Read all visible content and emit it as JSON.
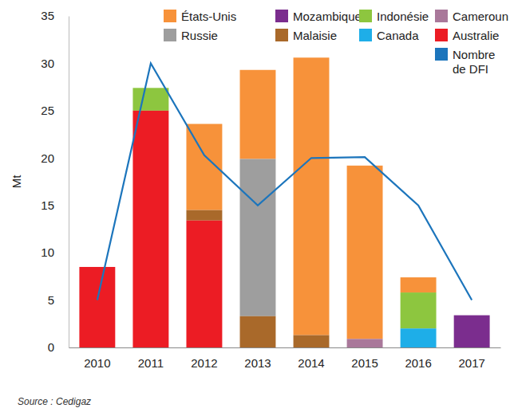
{
  "chart_data": {
    "type": "bar",
    "stacked": true,
    "y_label": "Mt",
    "annotations": [
      "Source : Cedigaz"
    ],
    "categories": [
      "2010",
      "2011",
      "2012",
      "2013",
      "2014",
      "2015",
      "2016",
      "2017"
    ],
    "ylim": [
      0,
      35
    ],
    "yticks": [
      0,
      5,
      10,
      15,
      20,
      25,
      30,
      35
    ],
    "grid": false,
    "legend": "top-right",
    "series": [
      {
        "name": "États-Unis",
        "color": "#f7923a",
        "values": [
          0,
          0,
          9.1,
          9.4,
          29.3,
          18.3,
          1.6,
          0
        ]
      },
      {
        "name": "Mozambique",
        "color": "#7b2d8e",
        "values": [
          0,
          0,
          0,
          0,
          0,
          0,
          0,
          3.4
        ]
      },
      {
        "name": "Indonésie",
        "color": "#8dc63f",
        "values": [
          0,
          2.4,
          0,
          0,
          0,
          0,
          3.8,
          0
        ]
      },
      {
        "name": "Cameroun",
        "color": "#a9789a",
        "values": [
          0,
          0,
          0,
          0,
          0,
          0.9,
          0,
          0
        ]
      },
      {
        "name": "Russie",
        "color": "#9e9e9e",
        "values": [
          0,
          0,
          0,
          16.6,
          0,
          0,
          0,
          0
        ]
      },
      {
        "name": "Malaisie",
        "color": "#a9692a",
        "values": [
          0,
          0,
          1.1,
          3.3,
          1.3,
          0,
          0,
          0
        ]
      },
      {
        "name": "Canada",
        "color": "#1eaee8",
        "values": [
          0,
          0,
          0,
          0,
          0,
          0,
          2.0,
          0
        ]
      },
      {
        "name": "Australie",
        "color": "#ec1c24",
        "values": [
          8.5,
          25,
          13.4,
          0,
          0,
          0,
          0,
          0
        ]
      },
      {
        "name": "Nombre de DFI",
        "type": "line",
        "color": "#1c75bc",
        "values": [
          5,
          30,
          20.3,
          15,
          20,
          20.1,
          15,
          5
        ]
      }
    ]
  }
}
